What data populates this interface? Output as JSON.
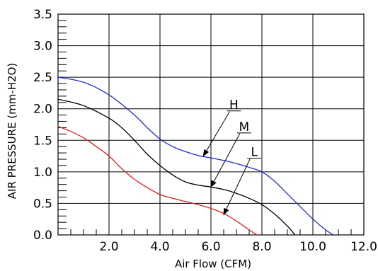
{
  "chart_data": {
    "type": "line",
    "xlabel": "Air Flow (CFM)",
    "ylabel": "AIR PRESSURE (mm-H2O)",
    "xlim": [
      0,
      12
    ],
    "ylim": [
      0,
      3.5
    ],
    "x_ticks": [
      "2.0",
      "4.0",
      "6.0",
      "8.0",
      "10.0",
      "12.0"
    ],
    "y_ticks": [
      "0.0",
      "0.5",
      "1.0",
      "1.5",
      "2.0",
      "2.5",
      "3.0",
      "3.5"
    ],
    "grid": true,
    "series": [
      {
        "name": "H",
        "color": "#1f2bd6",
        "x": [
          0,
          1.0,
          2.0,
          3.0,
          3.5,
          4.0,
          4.5,
          5.0,
          5.5,
          6.0,
          6.5,
          7.0,
          7.5,
          8.0,
          8.5,
          9.0,
          9.5,
          10.0,
          10.5,
          10.8
        ],
        "y": [
          2.5,
          2.42,
          2.22,
          1.9,
          1.7,
          1.52,
          1.4,
          1.32,
          1.26,
          1.22,
          1.18,
          1.13,
          1.07,
          1.0,
          0.85,
          0.65,
          0.45,
          0.25,
          0.08,
          0.0
        ]
      },
      {
        "name": "M",
        "color": "#000000",
        "x": [
          0,
          1.0,
          2.0,
          2.5,
          3.0,
          3.5,
          4.0,
          4.5,
          5.0,
          5.5,
          6.0,
          6.5,
          7.0,
          7.5,
          8.0,
          8.5,
          9.0,
          9.3
        ],
        "y": [
          2.15,
          2.05,
          1.85,
          1.7,
          1.5,
          1.28,
          1.1,
          0.95,
          0.84,
          0.79,
          0.76,
          0.72,
          0.66,
          0.58,
          0.48,
          0.33,
          0.14,
          0.0
        ]
      },
      {
        "name": "L",
        "color": "#e0201a",
        "x": [
          0,
          0.5,
          1.0,
          1.5,
          2.0,
          2.5,
          3.0,
          3.5,
          4.0,
          4.5,
          5.0,
          5.5,
          6.0,
          6.5,
          7.0,
          7.5,
          7.8
        ],
        "y": [
          1.72,
          1.64,
          1.54,
          1.4,
          1.25,
          1.05,
          0.88,
          0.75,
          0.64,
          0.58,
          0.53,
          0.48,
          0.42,
          0.34,
          0.22,
          0.08,
          0.0
        ]
      }
    ],
    "annotations": [
      {
        "label": "H",
        "label_x": 6.9,
        "label_y": 2.0,
        "target_x": 5.7,
        "target_y": 1.25
      },
      {
        "label": "M",
        "label_x": 7.3,
        "label_y": 1.65,
        "target_x": 6.0,
        "target_y": 0.76
      },
      {
        "label": "L",
        "label_x": 7.7,
        "label_y": 1.25,
        "target_x": 6.5,
        "target_y": 0.32
      }
    ]
  }
}
